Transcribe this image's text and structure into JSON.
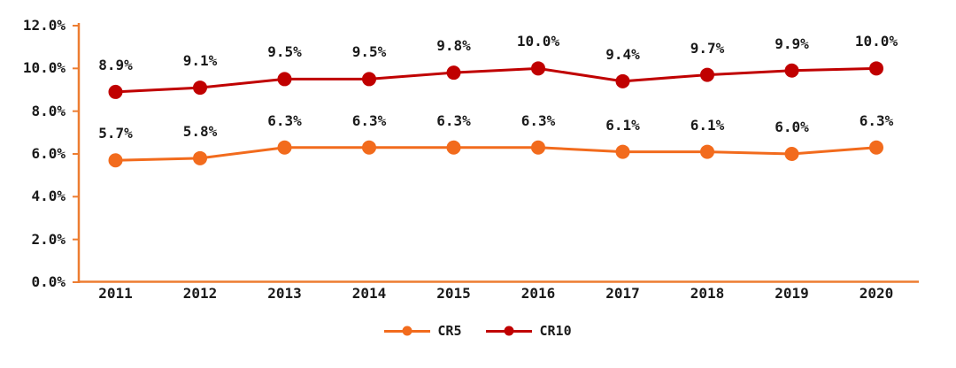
{
  "chart": {
    "background": "#ffffff",
    "text_color": "#1a1a1a"
  },
  "chart_data": {
    "type": "line",
    "title": "",
    "xlabel": "",
    "ylabel": "",
    "categories": [
      "2011",
      "2012",
      "2013",
      "2014",
      "2015",
      "2016",
      "2017",
      "2018",
      "2019",
      "2020"
    ],
    "series": [
      {
        "name": "CR5",
        "color": "#F26B1D",
        "values": [
          5.7,
          5.8,
          6.3,
          6.3,
          6.3,
          6.3,
          6.1,
          6.1,
          6.0,
          6.3
        ],
        "labels": [
          "5.7%",
          "5.8%",
          "6.3%",
          "6.3%",
          "6.3%",
          "6.3%",
          "6.1%",
          "6.1%",
          "6.0%",
          "6.3%"
        ]
      },
      {
        "name": "CR10",
        "color": "#C00000",
        "values": [
          8.9,
          9.1,
          9.5,
          9.5,
          9.8,
          10.0,
          9.4,
          9.7,
          9.9,
          10.0
        ],
        "labels": [
          "8.9%",
          "9.1%",
          "9.5%",
          "9.5%",
          "9.8%",
          "10.0%",
          "9.4%",
          "9.7%",
          "9.9%",
          "10.0%"
        ]
      }
    ],
    "ylim": [
      0,
      12
    ],
    "y_tick_labels": [
      "0.0%",
      "2.0%",
      "4.0%",
      "6.0%",
      "8.0%",
      "10.0%",
      "12.0%"
    ],
    "axis_color": "#ED7D31",
    "grid": false,
    "legend_position": "bottom",
    "marker": "circle",
    "data_labels": "above"
  }
}
